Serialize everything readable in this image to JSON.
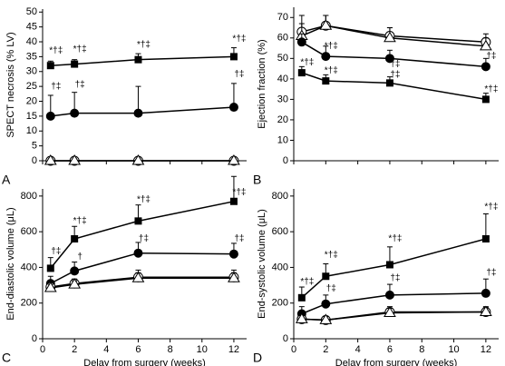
{
  "chart_data": [
    {
      "type": "line",
      "panel": "A",
      "ylabel": "SPECT necrosis (% LV)",
      "xlim": [
        0,
        12.8
      ],
      "xticks": [
        0,
        2,
        4,
        6,
        8,
        10,
        12
      ],
      "ylim": [
        0,
        51
      ],
      "yticks": [
        0,
        5,
        10,
        15,
        20,
        25,
        30,
        35,
        40,
        45,
        50
      ],
      "x": [
        0.5,
        2,
        6,
        12
      ],
      "series": [
        {
          "marker": "square",
          "color": "#000",
          "values": [
            32,
            32.5,
            34,
            35
          ],
          "errors": [
            1.5,
            1.5,
            2,
            3
          ]
        },
        {
          "marker": "circle",
          "color": "#000",
          "values": [
            15,
            16,
            16,
            18
          ],
          "errors": [
            7,
            7,
            9,
            8
          ]
        },
        {
          "marker": "open-circle",
          "color": "#000",
          "values": [
            0,
            0,
            0,
            0
          ],
          "errors": [
            0,
            0,
            0,
            0
          ]
        },
        {
          "marker": "triangle",
          "color": "#000",
          "values": [
            0,
            0,
            0,
            0
          ],
          "errors": [
            0,
            0,
            0,
            0
          ]
        }
      ],
      "annotations": [
        {
          "text": "*†‡",
          "x": 0.5,
          "y": 37
        },
        {
          "text": "*†‡",
          "x": 2,
          "y": 37.5
        },
        {
          "text": "*†‡",
          "x": 6,
          "y": 39
        },
        {
          "text": "*†‡",
          "x": 12,
          "y": 41
        },
        {
          "text": "†‡",
          "x": 0.5,
          "y": 25
        },
        {
          "text": "†‡",
          "x": 2,
          "y": 25.5
        },
        {
          "text": "†‡",
          "x": 12,
          "y": 29
        }
      ]
    },
    {
      "type": "line",
      "panel": "B",
      "ylabel": "Ejection fraction (%)",
      "xlim": [
        0,
        12.8
      ],
      "xticks": [
        0,
        2,
        4,
        6,
        8,
        10,
        12
      ],
      "ylim": [
        0,
        75
      ],
      "yticks": [
        0,
        10,
        20,
        30,
        40,
        50,
        60,
        70
      ],
      "x": [
        0.5,
        2,
        6,
        12
      ],
      "series": [
        {
          "marker": "open-circle",
          "color": "#000",
          "values": [
            63,
            66,
            61,
            58
          ],
          "errors": [
            8,
            5,
            4,
            4
          ]
        },
        {
          "marker": "triangle",
          "color": "#000",
          "values": [
            61,
            66,
            60,
            56
          ],
          "errors": [
            6,
            5,
            5,
            4
          ]
        },
        {
          "marker": "circle",
          "color": "#000",
          "values": [
            58,
            51,
            50,
            46
          ],
          "errors": [
            4,
            5,
            4,
            4
          ]
        },
        {
          "marker": "square",
          "color": "#000",
          "values": [
            43,
            39,
            38,
            30
          ],
          "errors": [
            3,
            3,
            3,
            3
          ]
        }
      ],
      "annotations": [
        {
          "text": "*†‡",
          "x": 2,
          "y": 56
        },
        {
          "text": "†‡",
          "x": 6,
          "y": 47
        },
        {
          "text": "*†‡",
          "x": 0.5,
          "y": 48
        },
        {
          "text": "*†‡",
          "x": 2,
          "y": 44
        },
        {
          "text": "†‡",
          "x": 6,
          "y": 42
        },
        {
          "text": "†‡",
          "x": 12,
          "y": 51
        },
        {
          "text": "*†‡",
          "x": 12,
          "y": 35
        }
      ]
    },
    {
      "type": "line",
      "panel": "C",
      "ylabel": "End-diastolic volume (μL)",
      "xlabel": "Delay from surgery (weeks)",
      "xlim": [
        0,
        12.8
      ],
      "xticks": [
        0,
        2,
        4,
        6,
        8,
        10,
        12
      ],
      "ylim": [
        0,
        840
      ],
      "yticks": [
        0,
        200,
        400,
        600,
        800
      ],
      "x": [
        0.5,
        2,
        6,
        12
      ],
      "series": [
        {
          "marker": "square",
          "color": "#000",
          "values": [
            395,
            560,
            660,
            770
          ],
          "errors": [
            60,
            70,
            90,
            140
          ]
        },
        {
          "marker": "circle",
          "color": "#000",
          "values": [
            310,
            380,
            480,
            475
          ],
          "errors": [
            40,
            50,
            60,
            60
          ]
        },
        {
          "marker": "open-circle",
          "color": "#000",
          "values": [
            290,
            310,
            345,
            345
          ],
          "errors": [
            20,
            25,
            40,
            40
          ]
        },
        {
          "marker": "triangle",
          "color": "#000",
          "values": [
            285,
            305,
            340,
            340
          ],
          "errors": [
            20,
            20,
            30,
            30
          ]
        }
      ],
      "annotations": [
        {
          "text": "†‡",
          "x": 0.5,
          "y": 490
        },
        {
          "text": "*†‡",
          "x": 2,
          "y": 660
        },
        {
          "text": "†",
          "x": 2,
          "y": 460
        },
        {
          "text": "*†‡",
          "x": 6,
          "y": 780
        },
        {
          "text": "†‡",
          "x": 6,
          "y": 560
        },
        {
          "text": "*†‡",
          "x": 12,
          "y": 820
        },
        {
          "text": "†‡",
          "x": 12,
          "y": 560
        }
      ]
    },
    {
      "type": "line",
      "panel": "D",
      "ylabel": "End-systolic volume (μL)",
      "xlabel": "Delay from surgery (weeks)",
      "xlim": [
        0,
        12.8
      ],
      "xticks": [
        0,
        2,
        4,
        6,
        8,
        10,
        12
      ],
      "ylim": [
        0,
        840
      ],
      "yticks": [
        0,
        200,
        400,
        600,
        800
      ],
      "x": [
        0.5,
        2,
        6,
        12
      ],
      "series": [
        {
          "marker": "square",
          "color": "#000",
          "values": [
            230,
            350,
            415,
            560
          ],
          "errors": [
            60,
            70,
            100,
            140
          ]
        },
        {
          "marker": "circle",
          "color": "#000",
          "values": [
            140,
            195,
            245,
            255
          ],
          "errors": [
            40,
            50,
            60,
            80
          ]
        },
        {
          "marker": "open-circle",
          "color": "#000",
          "values": [
            110,
            105,
            150,
            150
          ],
          "errors": [
            20,
            20,
            30,
            30
          ]
        },
        {
          "marker": "triangle",
          "color": "#000",
          "values": [
            110,
            105,
            145,
            150
          ],
          "errors": [
            20,
            20,
            25,
            25
          ]
        }
      ],
      "annotations": [
        {
          "text": "*†‡",
          "x": 0.5,
          "y": 320
        },
        {
          "text": "*†‡",
          "x": 2,
          "y": 470
        },
        {
          "text": "†‡",
          "x": 2,
          "y": 280
        },
        {
          "text": "*†‡",
          "x": 6,
          "y": 560
        },
        {
          "text": "†‡",
          "x": 6,
          "y": 340
        },
        {
          "text": "*†‡",
          "x": 12,
          "y": 740
        },
        {
          "text": "†‡",
          "x": 12,
          "y": 370
        }
      ]
    }
  ]
}
